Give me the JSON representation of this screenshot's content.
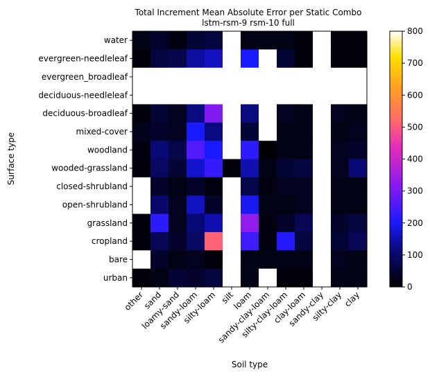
{
  "chart_data": {
    "type": "heatmap",
    "title": "Total Increment Mean Absolute Error per Static Combo",
    "subtitle": "lstm-rsm-9 rsm-10 full",
    "xlabel": "Soil type",
    "ylabel": "Surface type",
    "x_categories": [
      "other",
      "sand",
      "loamy-sand",
      "sandy-loam",
      "silty-loam",
      "silt",
      "loam",
      "sandy-clay-loam",
      "silty-clay-loam",
      "clay-loam",
      "sandy-clay",
      "silty-clay",
      "clay"
    ],
    "y_categories": [
      "water",
      "evergreen-needleleaf",
      "evergreen_broadleaf",
      "deciduous-needleleaf",
      "deciduous-broadleaf",
      "mixed-cover",
      "woodland",
      "wooded-grassland",
      "closed-shrubland",
      "open-shrubland",
      "grassland",
      "cropland",
      "bare",
      "urban"
    ],
    "values": [
      [
        20,
        40,
        15,
        50,
        60,
        null,
        20,
        20,
        20,
        10,
        null,
        10,
        10
      ],
      [
        10,
        60,
        70,
        140,
        160,
        null,
        200,
        null,
        50,
        10,
        null,
        10,
        10
      ],
      [
        null,
        null,
        null,
        null,
        null,
        null,
        null,
        null,
        null,
        null,
        null,
        null,
        null
      ],
      [
        null,
        null,
        null,
        null,
        null,
        null,
        null,
        null,
        null,
        null,
        null,
        null,
        null
      ],
      [
        10,
        50,
        30,
        120,
        310,
        null,
        120,
        null,
        30,
        20,
        null,
        30,
        20
      ],
      [
        25,
        40,
        30,
        200,
        120,
        null,
        50,
        null,
        20,
        20,
        null,
        20,
        30
      ],
      [
        15,
        110,
        70,
        260,
        200,
        null,
        220,
        5,
        20,
        20,
        null,
        30,
        40
      ],
      [
        10,
        90,
        50,
        170,
        230,
        10,
        150,
        20,
        50,
        60,
        null,
        30,
        110
      ],
      [
        null,
        40,
        20,
        40,
        15,
        null,
        70,
        15,
        30,
        30,
        null,
        20,
        20
      ],
      [
        null,
        100,
        30,
        160,
        40,
        null,
        190,
        20,
        20,
        30,
        null,
        20,
        20
      ],
      [
        10,
        220,
        30,
        110,
        150,
        null,
        330,
        15,
        40,
        80,
        null,
        40,
        60
      ],
      [
        10,
        80,
        40,
        90,
        510,
        null,
        240,
        15,
        210,
        60,
        null,
        50,
        80
      ],
      [
        null,
        40,
        20,
        30,
        10,
        null,
        20,
        20,
        20,
        20,
        null,
        30,
        20
      ],
      [
        10,
        20,
        50,
        40,
        60,
        null,
        20,
        null,
        10,
        10,
        null,
        20,
        20
      ]
    ],
    "colorbar": {
      "min": 0,
      "max": 800,
      "ticks": [
        0,
        100,
        200,
        300,
        400,
        500,
        600,
        700,
        800
      ],
      "colormap": "gnuplot2"
    },
    "nan_color": "#ffffff"
  }
}
